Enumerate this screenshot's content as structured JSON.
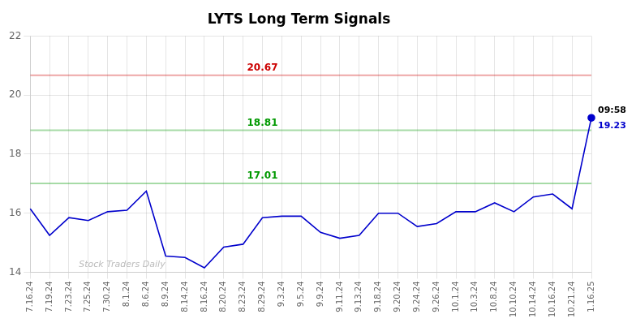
{
  "chart_data": {
    "type": "line",
    "title": "LYTS Long Term Signals",
    "categories": [
      "7.16.24",
      "7.19.24",
      "7.23.24",
      "7.25.24",
      "7.30.24",
      "8.1.24",
      "8.6.24",
      "8.9.24",
      "8.14.24",
      "8.16.24",
      "8.20.24",
      "8.23.24",
      "8.29.24",
      "9.3.24",
      "9.5.24",
      "9.9.24",
      "9.11.24",
      "9.13.24",
      "9.18.24",
      "9.20.24",
      "9.24.24",
      "9.26.24",
      "10.1.24",
      "10.3.24",
      "10.8.24",
      "10.10.24",
      "10.14.24",
      "10.16.24",
      "10.21.24",
      "1.16.25"
    ],
    "values": [
      16.15,
      15.25,
      15.85,
      15.75,
      16.05,
      16.1,
      16.75,
      14.55,
      14.5,
      14.15,
      14.85,
      14.95,
      15.85,
      15.9,
      15.9,
      15.35,
      15.15,
      15.25,
      16.0,
      16.0,
      15.55,
      15.65,
      16.05,
      16.05,
      16.35,
      16.05,
      16.55,
      16.65,
      16.15,
      19.23
    ],
    "color": "#0000cc",
    "hlines": [
      {
        "value": 20.67,
        "color": "#cc0000"
      },
      {
        "value": 18.81,
        "color": "#009900"
      },
      {
        "value": 17.01,
        "color": "#009900"
      }
    ],
    "last_point": {
      "time": "09:58",
      "price": 19.23,
      "color": "#0000cc"
    },
    "watermark": {
      "text": "Stock Traders Daily",
      "color": "#bbbbbb"
    },
    "ylim": [
      14,
      22
    ],
    "yticks": [
      14,
      16,
      18,
      20,
      22
    ],
    "grid": true
  }
}
